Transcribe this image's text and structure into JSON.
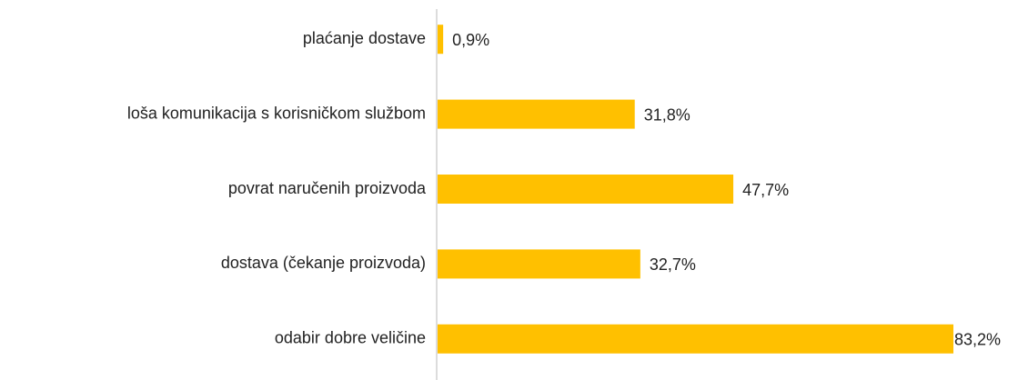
{
  "chart_data": {
    "type": "bar",
    "orientation": "horizontal",
    "categories": [
      "plaćanje dostave",
      "loša komunikacija s korisničkom službom",
      "povrat naručenih proizvoda",
      "dostava (čekanje proizvoda)",
      "odabir dobre veličine"
    ],
    "values": [
      0.9,
      31.8,
      47.7,
      32.7,
      83.2
    ],
    "value_labels": [
      "0,9%",
      "31,8%",
      "47,7%",
      "32,7%",
      "83,2%"
    ],
    "color": "#ffc000"
  }
}
